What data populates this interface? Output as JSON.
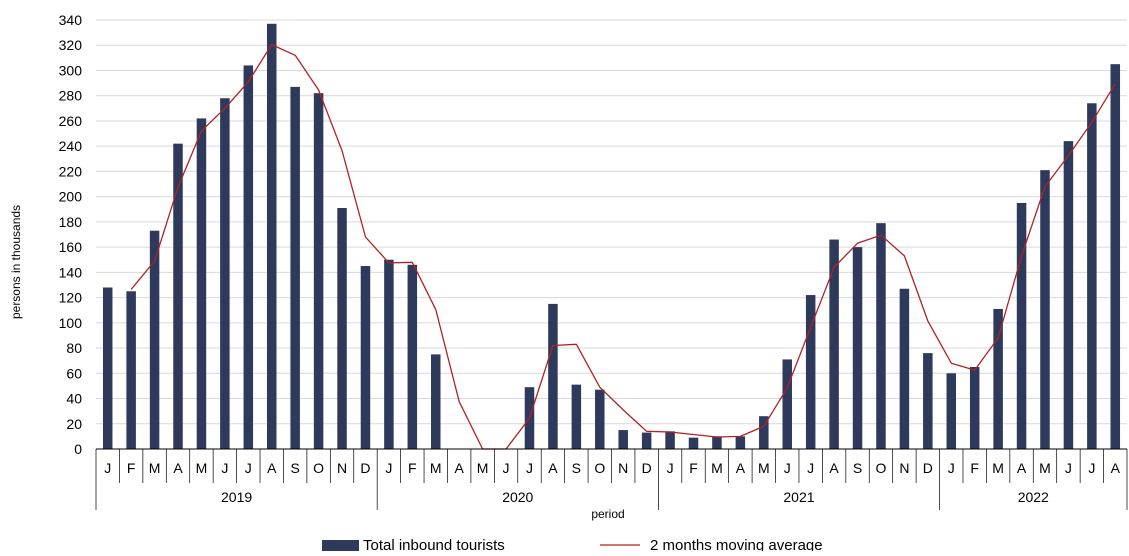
{
  "chart_data": {
    "type": "bar",
    "title": "",
    "xlabel": "period",
    "ylabel": "persons in thousands",
    "ylim": [
      0,
      340
    ],
    "yticks": [
      0,
      20,
      40,
      60,
      80,
      100,
      120,
      140,
      160,
      180,
      200,
      220,
      240,
      260,
      280,
      300,
      320,
      340
    ],
    "grid": "horizontal",
    "legend_position": "bottom",
    "years": [
      {
        "label": "2019",
        "months": [
          "J",
          "F",
          "M",
          "A",
          "M",
          "J",
          "J",
          "A",
          "S",
          "O",
          "N",
          "D"
        ]
      },
      {
        "label": "2020",
        "months": [
          "J",
          "F",
          "M",
          "A",
          "M",
          "J",
          "J",
          "A",
          "S",
          "O",
          "N",
          "D"
        ]
      },
      {
        "label": "2021",
        "months": [
          "J",
          "F",
          "M",
          "A",
          "M",
          "J",
          "J",
          "A",
          "S",
          "O",
          "N",
          "D"
        ]
      },
      {
        "label": "2022",
        "months": [
          "J",
          "F",
          "M",
          "A",
          "M",
          "J",
          "J",
          "A"
        ]
      }
    ],
    "series": [
      {
        "name": "Total inbound tourists",
        "type": "bar",
        "color": "#2e3a5c",
        "values": [
          128,
          125,
          173,
          242,
          262,
          278,
          304,
          337,
          287,
          282,
          191,
          145,
          150,
          146,
          75,
          0,
          0,
          0,
          49,
          115,
          51,
          47,
          15,
          13,
          14,
          9,
          10,
          10,
          26,
          71,
          122,
          166,
          160,
          179,
          127,
          76,
          60,
          65,
          111,
          195,
          221,
          244,
          274,
          305
        ]
      },
      {
        "name": "2 months moving average",
        "type": "line",
        "color": "#b22222",
        "values": [
          null,
          126.5,
          149,
          207.5,
          252,
          270,
          291,
          320.5,
          312,
          284.5,
          236.5,
          168,
          147.5,
          148,
          110.5,
          37.5,
          0,
          0,
          24.5,
          82,
          83,
          49,
          31,
          14,
          13.5,
          11.5,
          9.5,
          10,
          18,
          48.5,
          96.5,
          144,
          163,
          169.5,
          153,
          101.5,
          68,
          62.5,
          88,
          153,
          208,
          232.5,
          259,
          289.5
        ]
      }
    ]
  }
}
